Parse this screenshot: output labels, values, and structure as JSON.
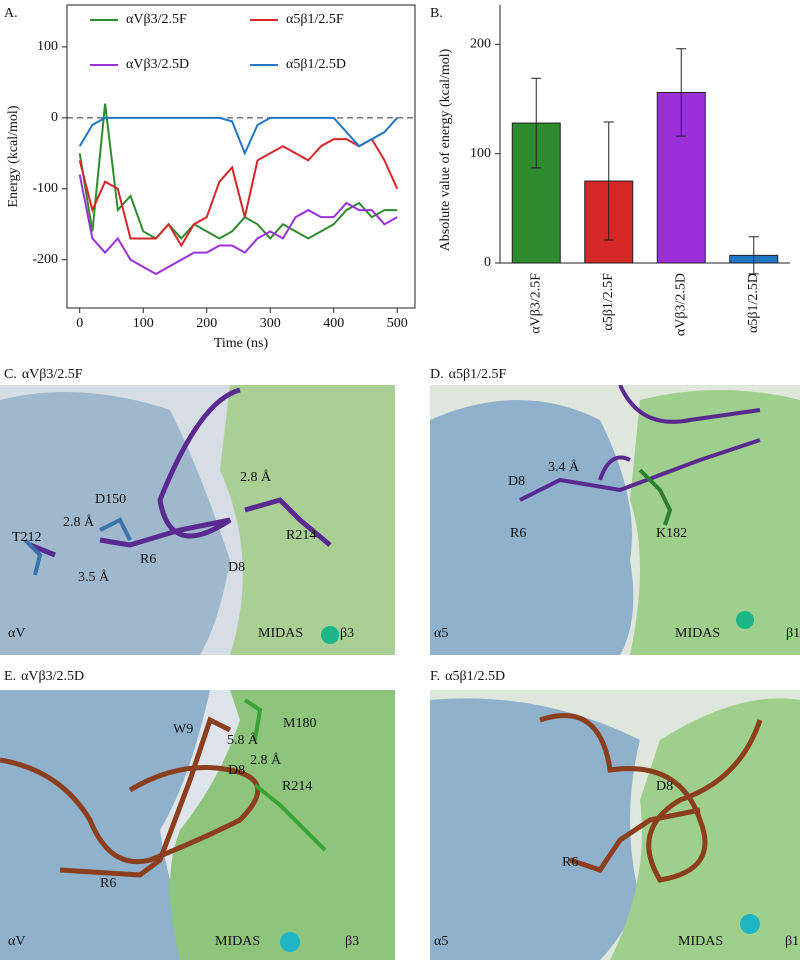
{
  "chart_data": [
    {
      "type": "line",
      "panel_label": "A.",
      "xlabel": "Time (ns)",
      "ylabel": "Energy (kcal/mol)",
      "x": [
        0,
        20,
        40,
        60,
        80,
        100,
        120,
        140,
        160,
        180,
        200,
        220,
        240,
        260,
        280,
        300,
        320,
        340,
        360,
        380,
        400,
        420,
        440,
        460,
        480,
        500
      ],
      "series": [
        {
          "name": "αVβ3/2.5F",
          "color": "#2e8b2e",
          "values": [
            -50,
            -160,
            20,
            -130,
            -110,
            -160,
            -170,
            -150,
            -170,
            -150,
            -160,
            -170,
            -160,
            -140,
            -150,
            -170,
            -150,
            -160,
            -170,
            -160,
            -150,
            -130,
            -120,
            -140,
            -130,
            -130
          ]
        },
        {
          "name": "α5β1/2.5F",
          "color": "#d62728",
          "values": [
            -60,
            -130,
            -90,
            -100,
            -170,
            -170,
            -170,
            -150,
            -180,
            -150,
            -140,
            -90,
            -70,
            -140,
            -60,
            -50,
            -40,
            -50,
            -60,
            -40,
            -30,
            -30,
            -40,
            -30,
            -60,
            -100
          ]
        },
        {
          "name": "αVβ3/2.5D",
          "color": "#9b30d9",
          "values": [
            -80,
            -170,
            -190,
            -170,
            -200,
            -210,
            -220,
            -210,
            -200,
            -190,
            -190,
            -180,
            -180,
            -190,
            -170,
            -160,
            -170,
            -140,
            -130,
            -140,
            -140,
            -120,
            -130,
            -130,
            -150,
            -140
          ]
        },
        {
          "name": "α5β1/2.5D",
          "color": "#1f77c4",
          "values": [
            -40,
            -10,
            0,
            0,
            0,
            0,
            0,
            0,
            0,
            0,
            0,
            0,
            -5,
            -50,
            -10,
            0,
            0,
            0,
            0,
            0,
            0,
            -20,
            -40,
            -30,
            -20,
            0
          ]
        }
      ],
      "xlim": [
        -20,
        528
      ],
      "ylim": [
        -268,
        159
      ],
      "xticks": [
        0,
        100,
        200,
        300,
        400,
        500
      ],
      "yticks": [
        100,
        0,
        -100,
        -200
      ],
      "hline": 0,
      "grid": false
    },
    {
      "type": "bar",
      "panel_label": "B.",
      "ylabel": "Absolute value of energy (kcal/mol)",
      "categories": [
        "αVβ3/2.5F",
        "α5β1/2.5F",
        "αVβ3/2.5D",
        "α5β1/2.5D"
      ],
      "values": [
        128,
        75,
        156,
        7
      ],
      "errors": [
        41,
        54,
        40,
        17
      ],
      "colors": [
        "#2e8b2e",
        "#d62728",
        "#9b30d9",
        "#1f77c4"
      ],
      "ylim": [
        0,
        236
      ],
      "yticks": [
        0,
        100,
        200
      ],
      "grid": false
    }
  ],
  "images": [
    {
      "label": "C.",
      "title": "αVβ3/2.5F",
      "annotations": [
        {
          "text": "D150",
          "color": "#2b6cb0"
        },
        {
          "text": "T212",
          "color": "#2b6cb0"
        },
        {
          "text": "2.8 Å",
          "color": "#111"
        },
        {
          "text": "3.5 Å",
          "color": "#111"
        },
        {
          "text": "R6",
          "color": "#6a2fa0"
        },
        {
          "text": "2.8 Å",
          "color": "#111"
        },
        {
          "text": "R214",
          "color": "#2e7d32"
        },
        {
          "text": "D8",
          "color": "#6a2fa0"
        },
        {
          "text": "MIDAS",
          "color": "#22d3ee"
        },
        {
          "text": "αV",
          "color": "#2b6cb0"
        },
        {
          "text": "β3",
          "color": "#2e7d32"
        }
      ]
    },
    {
      "label": "D.",
      "title": "α5β1/2.5F",
      "annotations": [
        {
          "text": "D8",
          "color": "#6a2fa0"
        },
        {
          "text": "3.4 Å",
          "color": "#111"
        },
        {
          "text": "R6",
          "color": "#6a2fa0"
        },
        {
          "text": "K182",
          "color": "#2e7d32"
        },
        {
          "text": "MIDAS",
          "color": "#22d3ee"
        },
        {
          "text": "α5",
          "color": "#2b6cb0"
        },
        {
          "text": "β1",
          "color": "#2e7d32"
        }
      ]
    },
    {
      "label": "E.",
      "title": "αVβ3/2.5D",
      "annotations": [
        {
          "text": "W9",
          "color": "#a0522d"
        },
        {
          "text": "5.8 Å",
          "color": "#111"
        },
        {
          "text": "M180",
          "color": "#2e7d32"
        },
        {
          "text": "2.8 Å",
          "color": "#111"
        },
        {
          "text": "R214",
          "color": "#2e7d32"
        },
        {
          "text": "D8",
          "color": "#a0522d"
        },
        {
          "text": "R6",
          "color": "#a0522d"
        },
        {
          "text": "MIDAS",
          "color": "#22d3ee"
        },
        {
          "text": "αV",
          "color": "#2b6cb0"
        },
        {
          "text": "β3",
          "color": "#2e7d32"
        }
      ]
    },
    {
      "label": "F.",
      "title": "α5β1/2.5D",
      "annotations": [
        {
          "text": "D8",
          "color": "#a0522d"
        },
        {
          "text": "R6",
          "color": "#a0522d"
        },
        {
          "text": "MIDAS",
          "color": "#22d3ee"
        },
        {
          "text": "α5",
          "color": "#2b6cb0"
        },
        {
          "text": "β1",
          "color": "#2e7d32"
        }
      ]
    }
  ]
}
